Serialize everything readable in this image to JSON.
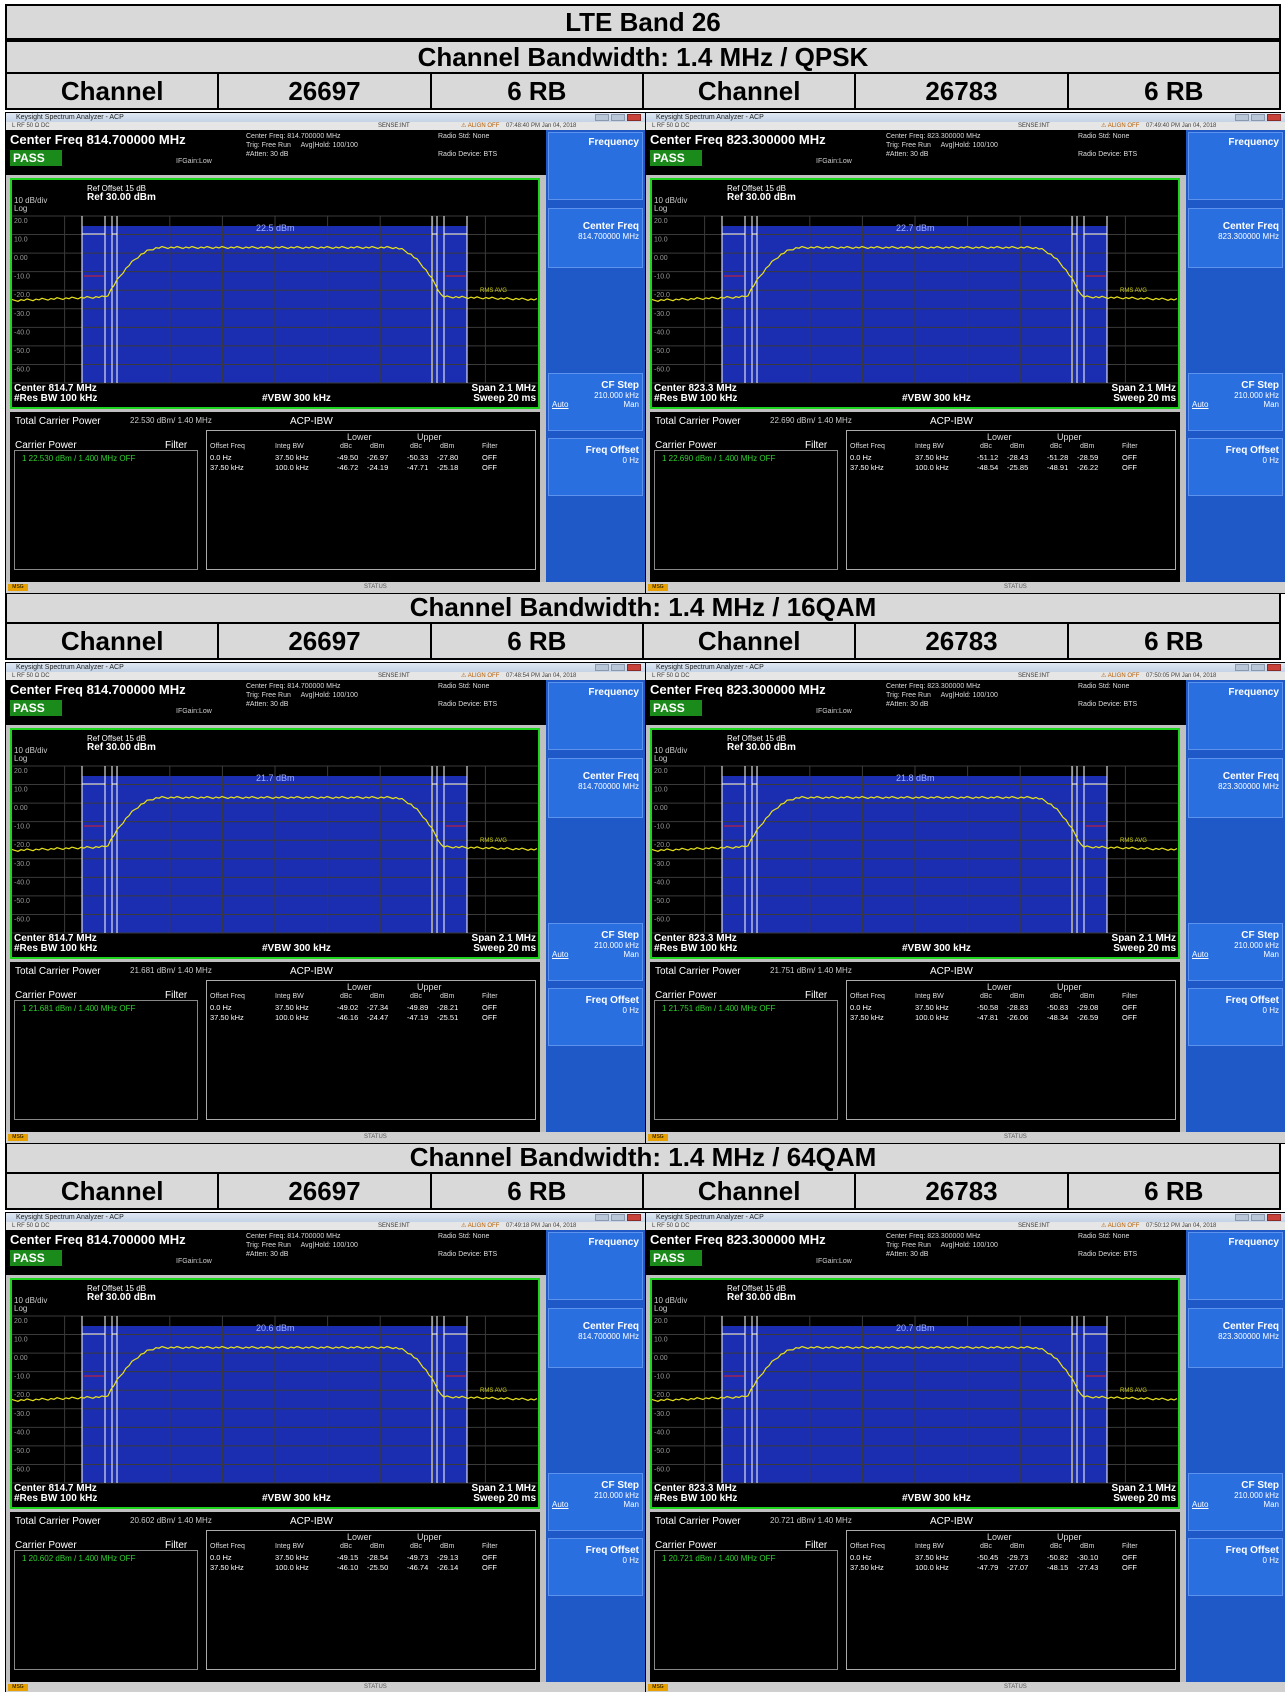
{
  "title": "LTE Band 26",
  "header_labels": {
    "channel": "Channel",
    "rb": "6 RB"
  },
  "sections": [
    {
      "heading": "Channel Bandwidth: 1.4 MHz / QPSK",
      "columns": [
        {
          "channel_label": "Channel",
          "channel": "26697",
          "rb": "6 RB"
        },
        {
          "channel_label": "Channel",
          "channel": "26783",
          "rb": "6 RB"
        }
      ]
    },
    {
      "heading": "Channel Bandwidth: 1.4 MHz / 16QAM",
      "columns": [
        {
          "channel_label": "Channel",
          "channel": "26697",
          "rb": "6 RB"
        },
        {
          "channel_label": "Channel",
          "channel": "26783",
          "rb": "6 RB"
        }
      ]
    },
    {
      "heading": "Channel Bandwidth: 1.4 MHz / 64QAM",
      "columns": [
        {
          "channel_label": "Channel",
          "channel": "26697",
          "rb": "6 RB"
        },
        {
          "channel_label": "Channel",
          "channel": "26783",
          "rb": "6 RB"
        }
      ]
    }
  ],
  "analyzer_common": {
    "window_title": "Keysight Spectrum Analyzer - ACP",
    "sense": "SENSE:INT",
    "align": "ALIGN OFF",
    "status_left": "L     RF     50 Ω  DC",
    "pass": "PASS",
    "ifgain": "IFGain:Low",
    "trig": "Trig: Free Run",
    "avg": "Avg|Hold: 100/100",
    "atten": "#Atten: 30 dB",
    "radio_std": "Radio Std: None",
    "radio_dev": "Radio Device: BTS",
    "ref_offset": "Ref Offset 15 dB",
    "ref_level": "Ref 30.00 dBm",
    "div": "10 dB/div",
    "log": "Log",
    "rbw": "#Res BW  100 kHz",
    "vbw": "#VBW  300 kHz",
    "span": "Span 2.1 MHz",
    "sweep": "Sweep  20 ms",
    "rms_avg": "RMS AVG",
    "tcp_label": "Total Carrier Power",
    "acp_title": "ACP-IBW",
    "carrier_power": "Carrier Power",
    "filter": "Filter",
    "lower": "Lower",
    "upper": "Upper",
    "col_offset": "Offset Freq",
    "col_integ": "Integ BW",
    "col_dbc": "dBc",
    "col_dbm": "dBm",
    "col_filter": "Filter",
    "off": "OFF",
    "side_frequency": "Frequency",
    "side_cf": "Center Freq",
    "side_cfstep": "CF Step",
    "side_cfstep_val": "210.000 kHz",
    "side_auto": "Auto",
    "side_man": "Man",
    "side_fo": "Freq Offset",
    "side_fo_val": "0 Hz",
    "msg": "MSG",
    "status": "STATUS",
    "yticks": [
      "20.0",
      "10.0",
      "0.00",
      "-10.0",
      "-20.0",
      "-30.0",
      "-40.0",
      "-50.0",
      "-60.0"
    ],
    "acp_row_offsets": [
      "0.0 Hz",
      "37.50 kHz"
    ],
    "acp_row_integ": [
      "37.50 kHz",
      "100.0 kHz"
    ]
  },
  "analyzers": [
    {
      "time": "07:48:40 PM Jan 04, 2018",
      "cf": "Center Freq 814.700000 MHz",
      "cf_small": "Center Freq: 814.700000 MHz",
      "marker": "22.5 dBm",
      "center": "Center  814.7 MHz",
      "side_cf_val": "814.700000 MHz",
      "tcp": "22.530 dBm/ 1.40 MHz",
      "cp": "1    22.530 dBm /  1.400 MHz   OFF",
      "rows": [
        [
          "-49.50",
          "-26.97",
          "-50.33",
          "-27.80"
        ],
        [
          "-46.72",
          "-24.19",
          "-47.71",
          "-25.18"
        ]
      ]
    },
    {
      "time": "07:49:40 PM Jan 04, 2018",
      "cf": "Center Freq 823.300000 MHz",
      "cf_small": "Center Freq: 823.300000 MHz",
      "marker": "22.7 dBm",
      "center": "Center  823.3 MHz",
      "side_cf_val": "823.300000 MHz",
      "tcp": "22.690 dBm/ 1.40 MHz",
      "cp": "1    22.690 dBm /  1.400 MHz   OFF",
      "rows": [
        [
          "-51.12",
          "-28.43",
          "-51.28",
          "-28.59"
        ],
        [
          "-48.54",
          "-25.85",
          "-48.91",
          "-26.22"
        ]
      ]
    },
    {
      "time": "07:48:54 PM Jan 04, 2018",
      "cf": "Center Freq 814.700000 MHz",
      "cf_small": "Center Freq: 814.700000 MHz",
      "marker": "21.7 dBm",
      "center": "Center  814.7 MHz",
      "side_cf_val": "814.700000 MHz",
      "tcp": "21.681 dBm/ 1.40 MHz",
      "cp": "1    21.681 dBm /  1.400 MHz   OFF",
      "rows": [
        [
          "-49.02",
          "-27.34",
          "-49.89",
          "-28.21"
        ],
        [
          "-46.16",
          "-24.47",
          "-47.19",
          "-25.51"
        ]
      ]
    },
    {
      "time": "07:50:05 PM Jan 04, 2018",
      "cf": "Center Freq 823.300000 MHz",
      "cf_small": "Center Freq: 823.300000 MHz",
      "marker": "21.8 dBm",
      "center": "Center  823.3 MHz",
      "side_cf_val": "823.300000 MHz",
      "tcp": "21.751 dBm/ 1.40 MHz",
      "cp": "1    21.751 dBm /  1.400 MHz   OFF",
      "rows": [
        [
          "-50.58",
          "-28.83",
          "-50.83",
          "-29.08"
        ],
        [
          "-47.81",
          "-26.06",
          "-48.34",
          "-26.59"
        ]
      ]
    },
    {
      "time": "07:49:18 PM Jan 04, 2018",
      "cf": "Center Freq 814.700000 MHz",
      "cf_small": "Center Freq: 814.700000 MHz",
      "marker": "20.6 dBm",
      "center": "Center  814.7 MHz",
      "side_cf_val": "814.700000 MHz",
      "tcp": "20.602 dBm/ 1.40 MHz",
      "cp": "1    20.602 dBm /  1.400 MHz   OFF",
      "rows": [
        [
          "-49.15",
          "-28.54",
          "-49.73",
          "-29.13"
        ],
        [
          "-46.10",
          "-25.50",
          "-46.74",
          "-26.14"
        ]
      ]
    },
    {
      "time": "07:50:12 PM Jan 04, 2018",
      "cf": "Center Freq 823.300000 MHz",
      "cf_small": "Center Freq: 823.300000 MHz",
      "marker": "20.7 dBm",
      "center": "Center  823.3 MHz",
      "side_cf_val": "823.300000 MHz",
      "tcp": "20.721 dBm/ 1.40 MHz",
      "cp": "1    20.721 dBm /  1.400 MHz   OFF",
      "rows": [
        [
          "-50.45",
          "-29.73",
          "-50.82",
          "-30.10"
        ],
        [
          "-47.79",
          "-27.07",
          "-48.15",
          "-27.43"
        ]
      ]
    }
  ]
}
